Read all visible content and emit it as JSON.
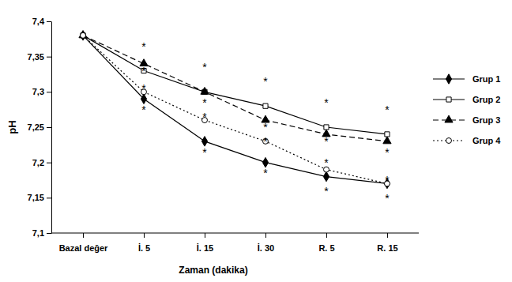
{
  "chart_data": {
    "type": "line",
    "x_label": "Zaman (dakika)",
    "y_label": "pH",
    "categories": [
      "Bazal değer",
      "İ. 5",
      "İ. 15",
      "İ. 30",
      "R. 5",
      "R. 15"
    ],
    "series": [
      {
        "name": "Grup 1",
        "color": "#000000",
        "marker": "diamond",
        "line_style": "solid",
        "values": [
          7.38,
          7.29,
          7.23,
          7.2,
          7.18,
          7.17
        ]
      },
      {
        "name": "Grup 2",
        "color": "#000000",
        "marker": "square",
        "line_style": "solid",
        "values": [
          7.38,
          7.33,
          7.3,
          7.28,
          7.25,
          7.24
        ]
      },
      {
        "name": "Grup 3",
        "color": "#000000",
        "marker": "triangle",
        "line_style": "dashed",
        "values": [
          7.38,
          7.34,
          7.3,
          7.26,
          7.24,
          7.23
        ]
      },
      {
        "name": "Grup 4",
        "color": "#000000",
        "marker": "circle",
        "line_style": "dotted",
        "values": [
          7.38,
          7.3,
          7.26,
          7.23,
          7.19,
          7.17
        ]
      }
    ],
    "ylim": [
      7.1,
      7.4
    ],
    "yticks": [
      {
        "value": 7.1,
        "label": "7,1"
      },
      {
        "value": 7.15,
        "label": "7,15"
      },
      {
        "value": 7.2,
        "label": "7,2"
      },
      {
        "value": 7.25,
        "label": "7,25"
      },
      {
        "value": 7.3,
        "label": "7,3"
      },
      {
        "value": 7.35,
        "label": "7,35"
      },
      {
        "value": 7.4,
        "label": "7,4"
      }
    ],
    "grid": false,
    "legend": "right",
    "annotations": [
      {
        "text": "*",
        "x": "İ. 5",
        "y": 7.37
      },
      {
        "text": "*",
        "x": "İ. 5",
        "y": 7.335
      },
      {
        "text": "*",
        "x": "İ. 5",
        "y": 7.31
      },
      {
        "text": "*",
        "x": "İ. 5",
        "y": 7.28
      },
      {
        "text": "*",
        "x": "İ. 15",
        "y": 7.34
      },
      {
        "text": "*",
        "x": "İ. 15",
        "y": 7.29
      },
      {
        "text": "*",
        "x": "İ. 15",
        "y": 7.27
      },
      {
        "text": "*",
        "x": "İ. 15",
        "y": 7.22
      },
      {
        "text": "*",
        "x": "İ. 30",
        "y": 7.32
      },
      {
        "text": "*",
        "x": "İ. 30",
        "y": 7.255
      },
      {
        "text": "*",
        "x": "İ. 30",
        "y": 7.235
      },
      {
        "text": "*",
        "x": "İ. 30",
        "y": 7.19
      },
      {
        "text": "*",
        "x": "R. 5",
        "y": 7.29
      },
      {
        "text": "*",
        "x": "R. 5",
        "y": 7.235
      },
      {
        "text": "*",
        "x": "R. 5",
        "y": 7.205
      },
      {
        "text": "*",
        "x": "R. 5",
        "y": 7.165
      },
      {
        "text": "*",
        "x": "R. 15",
        "y": 7.28
      },
      {
        "text": "*",
        "x": "R. 15",
        "y": 7.22
      },
      {
        "text": "*",
        "x": "R. 15",
        "y": 7.18
      },
      {
        "text": "*",
        "x": "R. 15",
        "y": 7.155
      }
    ]
  }
}
